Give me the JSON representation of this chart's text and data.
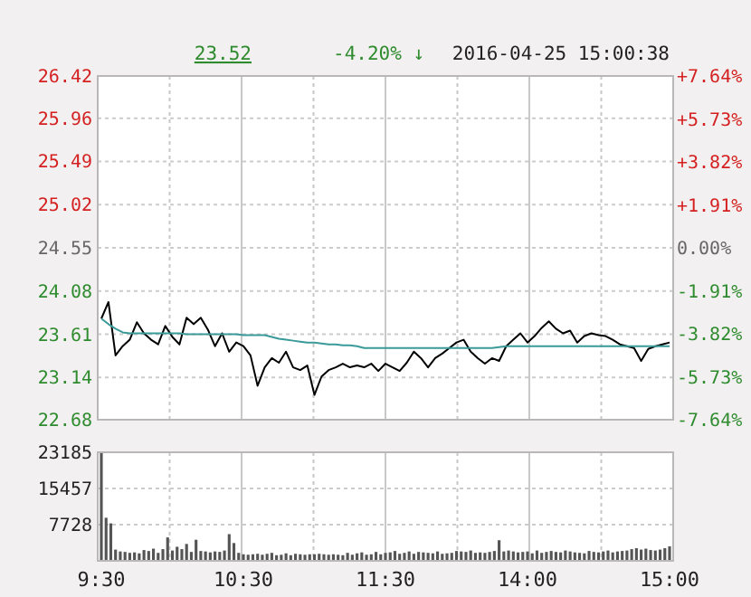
{
  "chart_data": [
    {
      "type": "line",
      "title": "2016-04-25 15:00:38",
      "annotations": [
        "23.52",
        "-4.20% ↓"
      ],
      "categories": [
        null,
        null,
        null,
        null,
        null,
        null,
        null,
        null,
        null,
        null,
        null,
        null,
        null,
        null,
        null,
        null,
        null,
        null,
        null,
        null,
        null,
        null,
        null,
        null,
        null,
        null,
        null,
        null,
        null,
        null,
        null,
        null,
        null,
        null,
        null,
        null,
        null,
        null,
        null,
        null,
        null,
        null,
        null,
        null,
        null,
        null,
        null,
        null,
        null,
        null,
        null,
        null,
        null,
        null,
        null,
        null,
        null,
        null,
        null,
        null,
        null,
        null,
        null,
        null,
        null,
        null,
        null,
        null,
        null,
        null,
        null,
        null,
        null,
        null,
        null,
        null,
        null,
        null,
        null,
        null,
        null
      ],
      "series": [
        {
          "color": "#000000",
          "values": [
            23.78,
            23.96,
            23.38,
            23.48,
            23.55,
            23.74,
            23.62,
            23.55,
            23.5,
            23.7,
            23.58,
            23.5,
            23.79,
            23.72,
            23.79,
            23.66,
            23.48,
            23.62,
            23.42,
            23.52,
            23.48,
            23.38,
            23.05,
            23.25,
            23.35,
            23.3,
            23.42,
            23.25,
            23.22,
            23.27,
            22.95,
            23.15,
            23.22,
            23.25,
            23.29,
            23.25,
            23.27,
            23.25,
            23.29,
            23.21,
            23.29,
            23.25,
            23.21,
            23.3,
            23.42,
            23.35,
            23.25,
            23.35,
            23.4,
            23.46,
            23.52,
            23.55,
            23.42,
            23.35,
            23.29,
            23.35,
            23.32,
            23.48,
            23.55,
            23.62,
            23.52,
            23.59,
            23.68,
            23.75,
            23.67,
            23.62,
            23.65,
            23.52,
            23.59,
            23.62,
            23.6,
            23.59,
            23.55,
            23.5,
            23.48,
            23.46,
            23.32,
            23.45,
            23.48,
            23.5,
            23.52
          ]
        },
        {
          "color": "#3a9a9a",
          "values": [
            23.78,
            23.72,
            23.67,
            23.63,
            23.62,
            23.62,
            23.62,
            23.62,
            23.62,
            23.62,
            23.62,
            23.62,
            23.61,
            23.61,
            23.61,
            23.61,
            23.61,
            23.61,
            23.61,
            23.61,
            23.6,
            23.6,
            23.6,
            23.6,
            23.58,
            23.56,
            23.55,
            23.54,
            23.53,
            23.52,
            23.52,
            23.51,
            23.5,
            23.5,
            23.49,
            23.49,
            23.48,
            23.46,
            23.46,
            23.46,
            23.46,
            23.46,
            23.46,
            23.46,
            23.46,
            23.46,
            23.46,
            23.46,
            23.46,
            23.46,
            23.46,
            23.46,
            23.46,
            23.46,
            23.46,
            23.46,
            23.47,
            23.48,
            23.48,
            23.48,
            23.48,
            23.48,
            23.48,
            23.48,
            23.48,
            23.48,
            23.48,
            23.48,
            23.48,
            23.48,
            23.48,
            23.48,
            23.48,
            23.48,
            23.48,
            23.48,
            23.48,
            23.48,
            23.48,
            23.48,
            23.48
          ]
        }
      ],
      "ylim": [
        22.68,
        26.42
      ],
      "yticks": [
        {
          "value": 22.68,
          "label": "22.68"
        },
        {
          "value": 23.14,
          "label": "23.14"
        },
        {
          "value": 23.61,
          "label": "23.61"
        },
        {
          "value": 24.08,
          "label": "24.08"
        },
        {
          "value": 24.55,
          "label": "24.55"
        },
        {
          "value": 25.02,
          "label": "25.02"
        },
        {
          "value": 25.49,
          "label": "25.49"
        },
        {
          "value": 25.96,
          "label": "25.96"
        },
        {
          "value": 26.42,
          "label": "26.42"
        }
      ],
      "y2lim": [
        -7.64,
        7.64
      ],
      "y2ticks": [
        {
          "value": -7.64,
          "label": "-7.64%"
        },
        {
          "value": -5.73,
          "label": "-5.73%"
        },
        {
          "value": -3.82,
          "label": "-3.82%"
        },
        {
          "value": -1.91,
          "label": "-1.91%"
        },
        {
          "value": 0,
          "label": "0.00%"
        },
        {
          "value": 1.91,
          "label": "+1.91%"
        },
        {
          "value": 3.82,
          "label": "+3.82%"
        },
        {
          "value": 5.73,
          "label": "+5.73%"
        },
        {
          "value": 7.64,
          "label": "+7.64%"
        }
      ],
      "grid": true,
      "tick_labels": "y",
      "marker": "none",
      "line_style": "solid"
    },
    {
      "type": "bar",
      "color": "#555555",
      "categories": [
        "9:30",
        null,
        null,
        null,
        null,
        null,
        null,
        null,
        null,
        null,
        null,
        null,
        null,
        null,
        null,
        null,
        null,
        null,
        null,
        null,
        null,
        null,
        null,
        null,
        null,
        null,
        null,
        null,
        null,
        null,
        "10:30",
        null,
        null,
        null,
        null,
        null,
        null,
        null,
        null,
        null,
        null,
        null,
        null,
        null,
        null,
        null,
        null,
        null,
        null,
        null,
        null,
        null,
        null,
        null,
        null,
        null,
        null,
        null,
        null,
        null,
        "11:30",
        null,
        null,
        null,
        null,
        null,
        null,
        null,
        null,
        null,
        null,
        null,
        null,
        null,
        null,
        null,
        null,
        null,
        null,
        null,
        null,
        null,
        null,
        null,
        null,
        null,
        null,
        null,
        null,
        null,
        "14:00",
        null,
        null,
        null,
        null,
        null,
        null,
        null,
        null,
        null,
        null,
        null,
        null,
        null,
        null,
        null,
        null,
        null,
        null,
        null,
        null,
        null,
        null,
        null,
        null,
        null,
        null,
        null,
        null,
        null,
        "15:00"
      ],
      "values": [
        23100,
        9200,
        8000,
        2400,
        2000,
        1900,
        1700,
        1800,
        1600,
        2300,
        2100,
        2600,
        1700,
        2500,
        5000,
        2200,
        3000,
        2500,
        3600,
        1900,
        4500,
        2100,
        2000,
        1800,
        2000,
        1900,
        2200,
        5700,
        3800,
        1700,
        1400,
        1300,
        1400,
        1500,
        1300,
        1500,
        1700,
        1200,
        1300,
        1600,
        1200,
        1500,
        1400,
        1300,
        1400,
        1400,
        1500,
        1400,
        1300,
        1400,
        1300,
        1200,
        1700,
        1300,
        1600,
        1800,
        1300,
        1400,
        1900,
        1400,
        1700,
        1800,
        2100,
        1500,
        1700,
        2000,
        1500,
        1900,
        1800,
        1700,
        1600,
        2000,
        1500,
        1600,
        1700,
        2100,
        2000,
        1900,
        2200,
        1700,
        1800,
        1700,
        1900,
        2100,
        4400,
        2000,
        2200,
        2000,
        1800,
        1900,
        2000,
        1600,
        2200,
        1700,
        1900,
        2100,
        1900,
        1800,
        2200,
        2000,
        1800,
        1700,
        1600,
        2100,
        1900,
        1800,
        2000,
        2200,
        1800,
        2000,
        2100,
        2200,
        2500,
        2700,
        2400,
        2600,
        2300,
        2200,
        2400,
        2700,
        3100
      ],
      "ylim": [
        0,
        23185
      ],
      "yticks": [
        7728,
        15457,
        23185
      ],
      "grid": true
    }
  ]
}
